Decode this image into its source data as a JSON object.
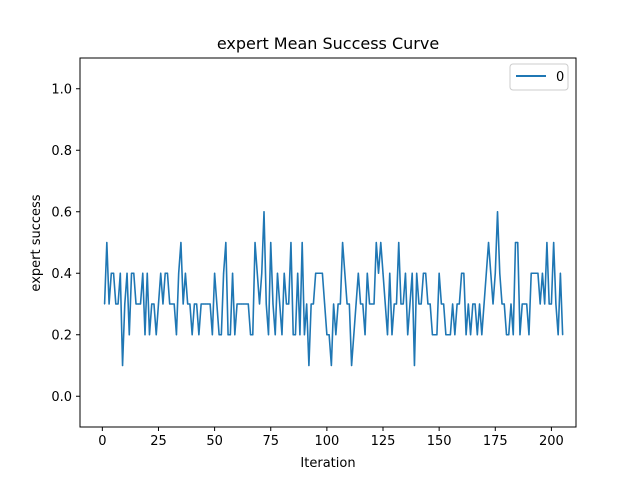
{
  "chart_data": {
    "type": "line",
    "title": "expert Mean Success Curve",
    "xlabel": "Iteration",
    "ylabel": "expert success",
    "xlim": [
      -9.95,
      210.95
    ],
    "ylim": [
      -0.1,
      1.1
    ],
    "x_ticks": [
      0,
      25,
      50,
      75,
      100,
      125,
      150,
      175,
      200
    ],
    "y_ticks": [
      0.0,
      0.2,
      0.4,
      0.6,
      0.8,
      1.0
    ],
    "x_tick_labels": [
      "0",
      "25",
      "50",
      "75",
      "100",
      "125",
      "150",
      "175",
      "200"
    ],
    "y_tick_labels": [
      "0.0",
      "0.2",
      "0.4",
      "0.6",
      "0.8",
      "1.0"
    ],
    "grid": false,
    "legend": {
      "position": "top-right"
    },
    "series": [
      {
        "name": "0",
        "color": "#1f77b4",
        "x_start": 1,
        "x_step": 1,
        "values": [
          0.3,
          0.5,
          0.3,
          0.4,
          0.4,
          0.3,
          0.3,
          0.4,
          0.1,
          0.3,
          0.4,
          0.2,
          0.4,
          0.4,
          0.3,
          0.3,
          0.3,
          0.4,
          0.2,
          0.4,
          0.2,
          0.3,
          0.3,
          0.2,
          0.3,
          0.4,
          0.3,
          0.4,
          0.4,
          0.3,
          0.3,
          0.3,
          0.2,
          0.4,
          0.5,
          0.3,
          0.4,
          0.3,
          0.3,
          0.2,
          0.3,
          0.3,
          0.2,
          0.3,
          0.3,
          0.3,
          0.3,
          0.3,
          0.2,
          0.4,
          0.3,
          0.2,
          0.2,
          0.4,
          0.5,
          0.2,
          0.2,
          0.4,
          0.2,
          0.3,
          0.3,
          0.3,
          0.3,
          0.3,
          0.3,
          0.2,
          0.2,
          0.5,
          0.4,
          0.3,
          0.4,
          0.6,
          0.3,
          0.2,
          0.5,
          0.3,
          0.2,
          0.4,
          0.3,
          0.2,
          0.4,
          0.3,
          0.3,
          0.5,
          0.2,
          0.2,
          0.4,
          0.2,
          0.5,
          0.2,
          0.3,
          0.1,
          0.3,
          0.3,
          0.4,
          0.4,
          0.4,
          0.4,
          0.3,
          0.2,
          0.2,
          0.1,
          0.3,
          0.2,
          0.3,
          0.3,
          0.5,
          0.4,
          0.3,
          0.3,
          0.1,
          0.2,
          0.3,
          0.4,
          0.3,
          0.3,
          0.2,
          0.4,
          0.3,
          0.3,
          0.3,
          0.5,
          0.4,
          0.5,
          0.4,
          0.3,
          0.2,
          0.4,
          0.2,
          0.3,
          0.3,
          0.5,
          0.3,
          0.3,
          0.4,
          0.2,
          0.3,
          0.4,
          0.1,
          0.4,
          0.3,
          0.3,
          0.4,
          0.4,
          0.3,
          0.3,
          0.2,
          0.2,
          0.2,
          0.4,
          0.3,
          0.3,
          0.2,
          0.2,
          0.2,
          0.3,
          0.2,
          0.3,
          0.3,
          0.4,
          0.4,
          0.2,
          0.3,
          0.2,
          0.3,
          0.3,
          0.2,
          0.3,
          0.2,
          0.3,
          0.4,
          0.5,
          0.4,
          0.3,
          0.4,
          0.6,
          0.4,
          0.3,
          0.3,
          0.2,
          0.2,
          0.3,
          0.2,
          0.5,
          0.5,
          0.2,
          0.3,
          0.3,
          0.3,
          0.2,
          0.4,
          0.4,
          0.4,
          0.4,
          0.3,
          0.4,
          0.3,
          0.5,
          0.3,
          0.3,
          0.5,
          0.3,
          0.2,
          0.4,
          0.2
        ]
      }
    ]
  }
}
